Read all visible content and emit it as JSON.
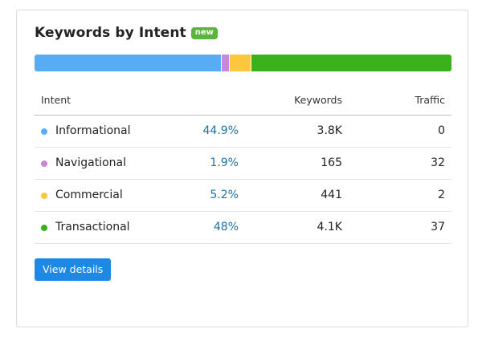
{
  "widget": {
    "title": "Keywords by Intent",
    "badge": "new"
  },
  "distribution": [
    {
      "intent": "Informational",
      "fraction": 0.449,
      "color": "#57acf3"
    },
    {
      "intent": "Navigational",
      "fraction": 0.019,
      "color": "#c786d8"
    },
    {
      "intent": "Commercial",
      "fraction": 0.052,
      "color": "#fac73e"
    },
    {
      "intent": "Transactional",
      "fraction": 0.48,
      "color": "#3ab11b"
    }
  ],
  "table": {
    "columns": {
      "intent": "Intent",
      "keywords": "Keywords",
      "traffic": "Traffic"
    },
    "rows": [
      {
        "intent": "Informational",
        "percent": "44.9%",
        "keywords": "3.8K",
        "traffic": "0",
        "color": "#57acf3"
      },
      {
        "intent": "Navigational",
        "percent": "1.9%",
        "keywords": "165",
        "traffic": "32",
        "color": "#c786d8"
      },
      {
        "intent": "Commercial",
        "percent": "5.2%",
        "keywords": "441",
        "traffic": "2",
        "color": "#fac73e"
      },
      {
        "intent": "Transactional",
        "percent": "48%",
        "keywords": "4.1K",
        "traffic": "37",
        "color": "#3ab11b"
      }
    ]
  },
  "actions": {
    "view_details": "View details"
  }
}
